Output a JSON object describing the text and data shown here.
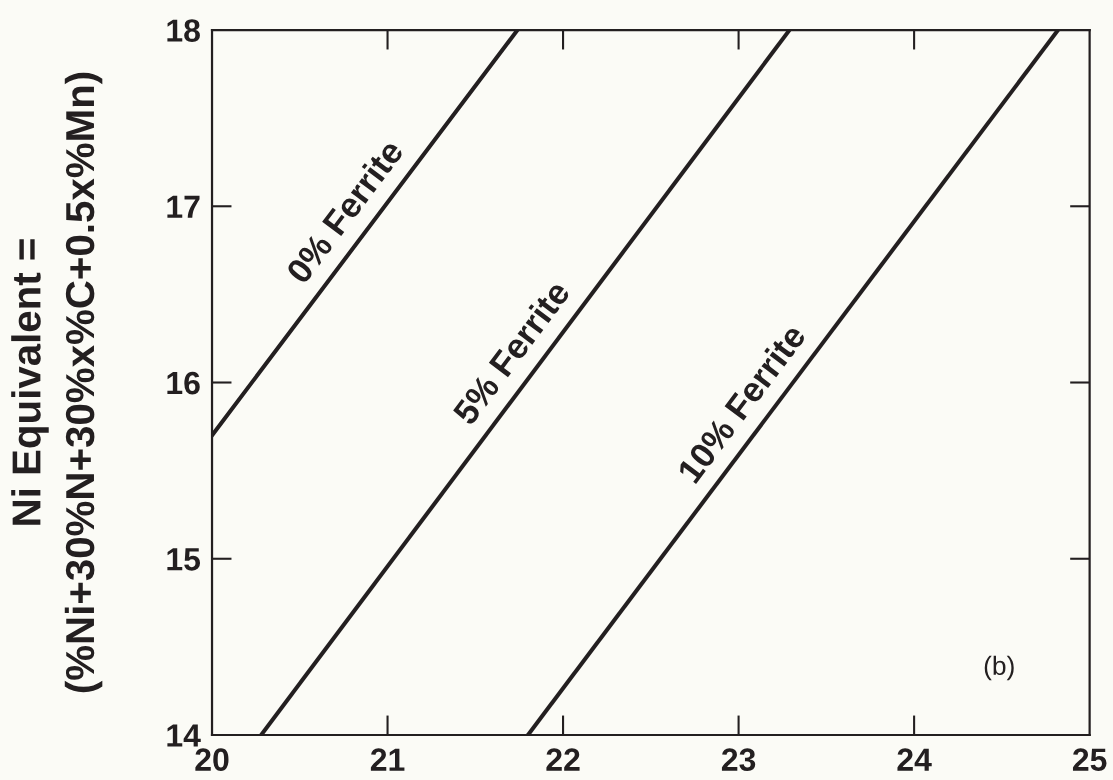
{
  "chart_data": {
    "type": "line",
    "ylabel": "Ni Equivalent =\n(%Ni+30%N+30%x%C+0.5x%Mn)",
    "xlim": [
      20,
      25
    ],
    "ylim": [
      14,
      18
    ],
    "xticks": [
      20,
      21,
      22,
      23,
      24,
      25
    ],
    "yticks": [
      14,
      15,
      16,
      17,
      18
    ],
    "series": [
      {
        "color": "#231f20",
        "x": [
          20,
          21.74
        ],
        "values": [
          15.7,
          18
        ]
      },
      {
        "color": "#231f20",
        "x": [
          20.28,
          23.29
        ],
        "values": [
          14,
          18
        ]
      },
      {
        "color": "#231f20",
        "x": [
          21.8,
          24.82
        ],
        "values": [
          14,
          18
        ]
      }
    ],
    "annotations": [
      {
        "text": "0% Ferrite",
        "x": 20.89,
        "y": 16.87
      },
      {
        "text": "5% Ferrite",
        "x": 21.84,
        "y": 16.07
      },
      {
        "text": "10% Ferrite",
        "x": 23.15,
        "y": 15.78
      },
      "(b)"
    ]
  }
}
